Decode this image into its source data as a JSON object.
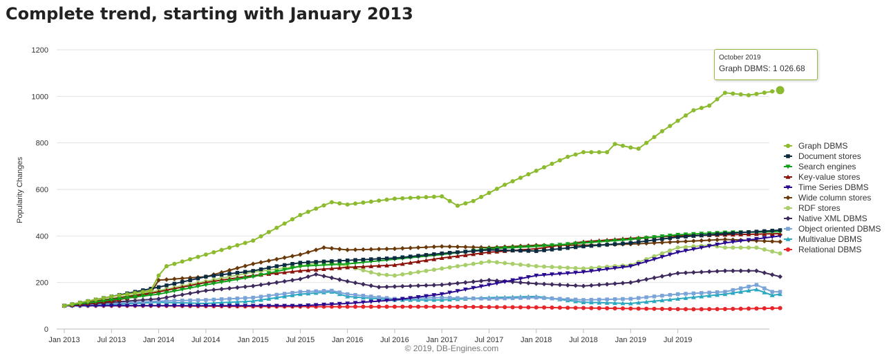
{
  "title": "Complete trend, starting with January 2013",
  "credit": "© 2019, DB-Engines.com",
  "tooltip": {
    "date": "October 2019",
    "text": "Graph DBMS: 1 026.68"
  },
  "chart_data": {
    "type": "line",
    "ylabel": "Popularity Changes",
    "xlabel": "",
    "ylim": [
      0,
      1200
    ],
    "yticks": [
      "0",
      "200",
      "400",
      "600",
      "800",
      "1000",
      "1200"
    ],
    "xticks": [
      "Jan 2013",
      "Jul 2013",
      "Jan 2014",
      "Jul 2014",
      "Jan 2015",
      "Jul 2015",
      "Jan 2016",
      "Jul 2016",
      "Jan 2017",
      "Jul 2017",
      "Jan 2018",
      "Jul 2018",
      "Jan 2019",
      "Jul 2019"
    ],
    "x_range": [
      "Jan 2013",
      "Oct 2019"
    ],
    "legend_position": "right",
    "grid": "horizontal",
    "series": [
      {
        "name": "Graph DBMS",
        "color": "#8dbb2f",
        "marker": "circle",
        "keypoints": [
          [
            0,
            100
          ],
          [
            6,
            140
          ],
          [
            10,
            160
          ],
          [
            11,
            165
          ],
          [
            12,
            230
          ],
          [
            13,
            270
          ],
          [
            18,
            320
          ],
          [
            24,
            380
          ],
          [
            30,
            490
          ],
          [
            34,
            545
          ],
          [
            36,
            535
          ],
          [
            42,
            560
          ],
          [
            48,
            570
          ],
          [
            50,
            530
          ],
          [
            52,
            550
          ],
          [
            56,
            620
          ],
          [
            60,
            680
          ],
          [
            64,
            740
          ],
          [
            66,
            760
          ],
          [
            69,
            760
          ],
          [
            70,
            795
          ],
          [
            72,
            780
          ],
          [
            73,
            775
          ],
          [
            76,
            850
          ],
          [
            80,
            940
          ],
          [
            82,
            960
          ],
          [
            84,
            1015
          ],
          [
            87,
            1005
          ],
          [
            88,
            1010
          ],
          [
            91,
            1026.68
          ]
        ]
      },
      {
        "name": "Document stores",
        "color": "#0b2b40",
        "marker": "square",
        "keypoints": [
          [
            0,
            100
          ],
          [
            6,
            140
          ],
          [
            12,
            180
          ],
          [
            18,
            225
          ],
          [
            24,
            250
          ],
          [
            27,
            270
          ],
          [
            30,
            285
          ],
          [
            36,
            295
          ],
          [
            42,
            305
          ],
          [
            48,
            325
          ],
          [
            54,
            340
          ],
          [
            60,
            335
          ],
          [
            66,
            355
          ],
          [
            72,
            370
          ],
          [
            78,
            395
          ],
          [
            84,
            410
          ],
          [
            91,
            425
          ]
        ]
      },
      {
        "name": "Search engines",
        "color": "#11a01a",
        "marker": "triangle-down",
        "keypoints": [
          [
            0,
            100
          ],
          [
            6,
            125
          ],
          [
            12,
            150
          ],
          [
            18,
            190
          ],
          [
            24,
            225
          ],
          [
            30,
            270
          ],
          [
            36,
            280
          ],
          [
            42,
            300
          ],
          [
            48,
            320
          ],
          [
            54,
            345
          ],
          [
            60,
            355
          ],
          [
            66,
            370
          ],
          [
            72,
            385
          ],
          [
            78,
            405
          ],
          [
            84,
            415
          ],
          [
            91,
            418
          ]
        ]
      },
      {
        "name": "Key-value stores",
        "color": "#8b1008",
        "marker": "triangle-up",
        "keypoints": [
          [
            0,
            100
          ],
          [
            6,
            120
          ],
          [
            12,
            160
          ],
          [
            18,
            200
          ],
          [
            24,
            230
          ],
          [
            30,
            250
          ],
          [
            36,
            265
          ],
          [
            42,
            275
          ],
          [
            48,
            305
          ],
          [
            54,
            330
          ],
          [
            60,
            345
          ],
          [
            66,
            375
          ],
          [
            72,
            390
          ],
          [
            78,
            400
          ],
          [
            84,
            405
          ],
          [
            91,
            410
          ]
        ]
      },
      {
        "name": "Time Series DBMS",
        "color": "#2a0a90",
        "marker": "triangle-down",
        "keypoints": [
          [
            0,
            100
          ],
          [
            12,
            100
          ],
          [
            24,
            100
          ],
          [
            30,
            100
          ],
          [
            36,
            110
          ],
          [
            42,
            125
          ],
          [
            48,
            150
          ],
          [
            54,
            190
          ],
          [
            60,
            230
          ],
          [
            66,
            245
          ],
          [
            72,
            270
          ],
          [
            78,
            330
          ],
          [
            84,
            370
          ],
          [
            91,
            400
          ]
        ]
      },
      {
        "name": "Wide column stores",
        "color": "#6b3a0a",
        "marker": "diamond",
        "keypoints": [
          [
            0,
            100
          ],
          [
            6,
            130
          ],
          [
            11,
            155
          ],
          [
            12,
            210
          ],
          [
            18,
            225
          ],
          [
            24,
            280
          ],
          [
            30,
            320
          ],
          [
            33,
            350
          ],
          [
            36,
            340
          ],
          [
            42,
            345
          ],
          [
            48,
            355
          ],
          [
            54,
            350
          ],
          [
            60,
            360
          ],
          [
            66,
            360
          ],
          [
            72,
            365
          ],
          [
            78,
            375
          ],
          [
            84,
            385
          ],
          [
            91,
            375
          ]
        ]
      },
      {
        "name": "RDF stores",
        "color": "#a8cf6a",
        "marker": "circle",
        "keypoints": [
          [
            0,
            100
          ],
          [
            6,
            130
          ],
          [
            12,
            165
          ],
          [
            18,
            205
          ],
          [
            24,
            245
          ],
          [
            30,
            270
          ],
          [
            33,
            290
          ],
          [
            36,
            270
          ],
          [
            40,
            235
          ],
          [
            42,
            230
          ],
          [
            48,
            260
          ],
          [
            54,
            290
          ],
          [
            60,
            270
          ],
          [
            66,
            260
          ],
          [
            72,
            275
          ],
          [
            78,
            350
          ],
          [
            82,
            360
          ],
          [
            84,
            350
          ],
          [
            88,
            350
          ],
          [
            91,
            325
          ]
        ]
      },
      {
        "name": "Native XML DBMS",
        "color": "#3e2a5c",
        "marker": "diamond",
        "keypoints": [
          [
            0,
            100
          ],
          [
            6,
            115
          ],
          [
            12,
            130
          ],
          [
            18,
            165
          ],
          [
            24,
            185
          ],
          [
            30,
            215
          ],
          [
            32,
            235
          ],
          [
            36,
            205
          ],
          [
            40,
            180
          ],
          [
            48,
            190
          ],
          [
            54,
            210
          ],
          [
            60,
            195
          ],
          [
            66,
            185
          ],
          [
            72,
            200
          ],
          [
            78,
            240
          ],
          [
            84,
            250
          ],
          [
            88,
            250
          ],
          [
            91,
            225
          ]
        ]
      },
      {
        "name": "Object oriented DBMS",
        "color": "#7aa3d8",
        "marker": "square",
        "keypoints": [
          [
            0,
            100
          ],
          [
            6,
            110
          ],
          [
            12,
            120
          ],
          [
            18,
            125
          ],
          [
            24,
            135
          ],
          [
            30,
            160
          ],
          [
            34,
            165
          ],
          [
            36,
            150
          ],
          [
            42,
            130
          ],
          [
            48,
            135
          ],
          [
            54,
            130
          ],
          [
            60,
            135
          ],
          [
            66,
            125
          ],
          [
            72,
            130
          ],
          [
            78,
            150
          ],
          [
            84,
            160
          ],
          [
            88,
            190
          ],
          [
            90,
            160
          ],
          [
            91,
            160
          ]
        ]
      },
      {
        "name": "Multivalue DBMS",
        "color": "#2aa8c0",
        "marker": "triangle-up",
        "keypoints": [
          [
            0,
            100
          ],
          [
            6,
            105
          ],
          [
            12,
            115
          ],
          [
            18,
            110
          ],
          [
            24,
            120
          ],
          [
            30,
            150
          ],
          [
            34,
            160
          ],
          [
            36,
            140
          ],
          [
            42,
            125
          ],
          [
            48,
            125
          ],
          [
            54,
            135
          ],
          [
            60,
            140
          ],
          [
            66,
            115
          ],
          [
            72,
            110
          ],
          [
            78,
            130
          ],
          [
            84,
            150
          ],
          [
            88,
            170
          ],
          [
            90,
            145
          ],
          [
            91,
            150
          ]
        ]
      },
      {
        "name": "Relational DBMS",
        "color": "#e8262a",
        "marker": "circle",
        "keypoints": [
          [
            0,
            100
          ],
          [
            12,
            100
          ],
          [
            24,
            97
          ],
          [
            36,
            96
          ],
          [
            48,
            96
          ],
          [
            60,
            93
          ],
          [
            72,
            88
          ],
          [
            80,
            85
          ],
          [
            84,
            86
          ],
          [
            91,
            90
          ]
        ]
      }
    ]
  }
}
